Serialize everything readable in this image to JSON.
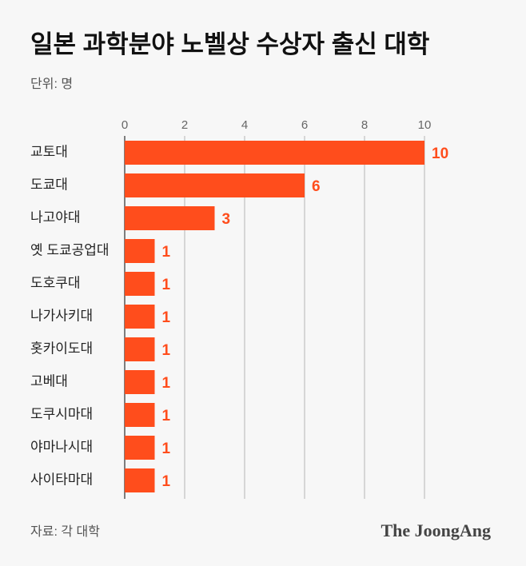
{
  "chart_data": {
    "type": "bar",
    "orientation": "horizontal",
    "title": "일본 과학분야 노벨상 수상자 출신 대학",
    "subtitle": "단위: 명",
    "source": "자료: 각 대학",
    "brand": "The JoongAng",
    "categories": [
      "교토대",
      "도쿄대",
      "나고야대",
      "옛 도쿄공업대",
      "도호쿠대",
      "나가사키대",
      "홋카이도대",
      "고베대",
      "도쿠시마대",
      "야마나시대",
      "사이타마대"
    ],
    "values": [
      10,
      6,
      3,
      1,
      1,
      1,
      1,
      1,
      1,
      1,
      1
    ],
    "color": "#ff4d1c",
    "xlim": [
      0,
      10
    ],
    "xticks": [
      0,
      2,
      4,
      6,
      8,
      10
    ],
    "grid": true
  }
}
